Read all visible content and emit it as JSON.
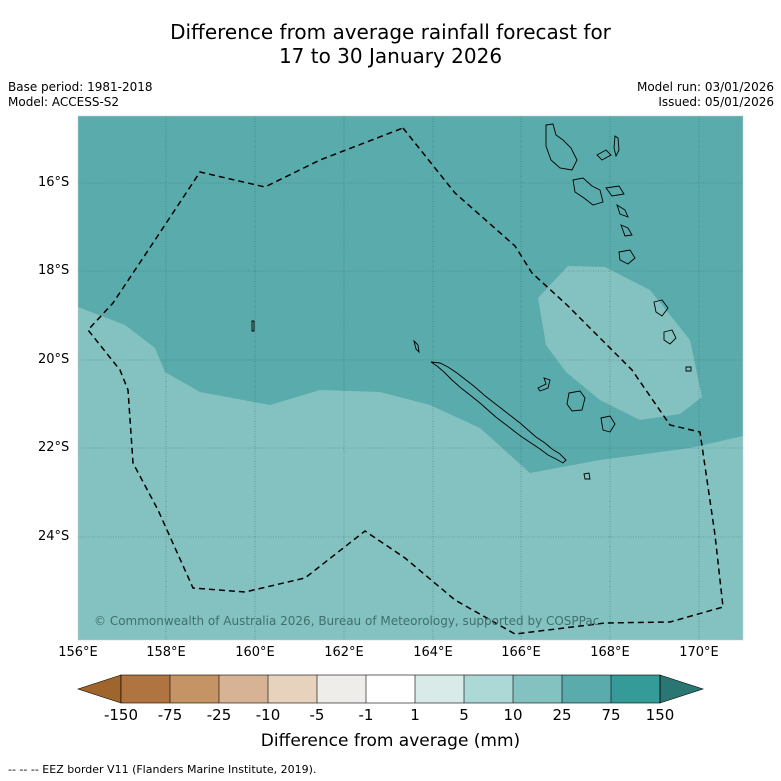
{
  "title_line1": "Difference from average rainfall forecast for",
  "title_line2": "17 to 30 January 2026",
  "base_period": "Base period: 1981-2018",
  "model": "Model: ACCESS-S2",
  "model_run": "Model run: 03/01/2026",
  "issued": "Issued: 05/01/2026",
  "lat_labels": [
    "16°S",
    "18°S",
    "20°S",
    "22°S",
    "24°S"
  ],
  "lon_labels": [
    "156°E",
    "158°E",
    "160°E",
    "162°E",
    "164°E",
    "166°E",
    "168°E",
    "170°E"
  ],
  "copyright": "© Commonwealth of Australia 2026, Bureau of Meteorology, supported by COSPPac",
  "colorbar": {
    "ticks": [
      "-150",
      "-75",
      "-25",
      "-10",
      "-5",
      "-1",
      "1",
      "5",
      "10",
      "25",
      "75",
      "150"
    ],
    "colors": [
      "#a0652c",
      "#b07440",
      "#c49464",
      "#d6b394",
      "#e6d2bd",
      "#efedea",
      "#ffffff",
      "#d8ebe8",
      "#acd8d6",
      "#84c2c1",
      "#5aabab",
      "#359b98",
      "#2b7673"
    ],
    "title": "Difference from average (mm)"
  },
  "legend_footnote": "-- -- -- EEZ border V11 (Flanders Marine Institute, 2019).",
  "map_colors": {
    "band_5_10": "#84c2c1",
    "band_10_25": "#5aabab",
    "light_patch": "#84c2c1"
  }
}
